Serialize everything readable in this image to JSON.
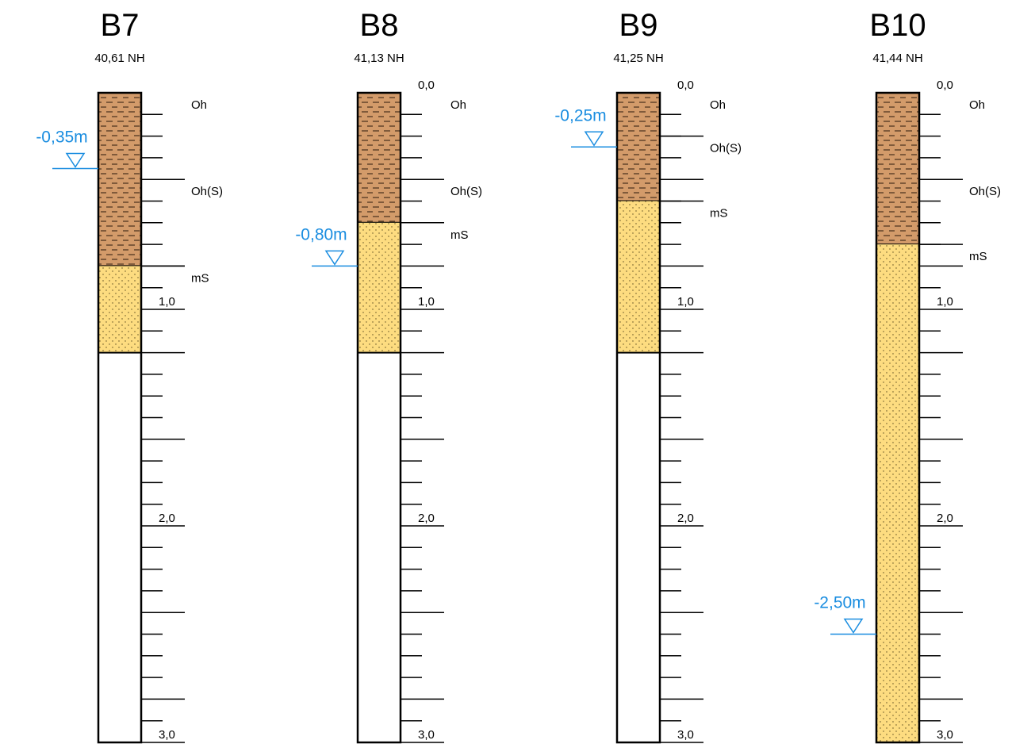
{
  "colors": {
    "organic": "#d39b6a",
    "sand": "#fddc80",
    "water": "#1a8de0",
    "outline": "#000000"
  },
  "scale_ticks_per_metre": 10,
  "boreholes": [
    {
      "name": "B7",
      "elevation": "40,61 NH",
      "depth_labels": [
        "1,0",
        "2,0",
        "3,0"
      ],
      "layers": [
        {
          "code": "Oh",
          "type": "organic",
          "from": 0.0,
          "to": 0.4
        },
        {
          "code": "Oh(S)",
          "type": "organic",
          "from": 0.4,
          "to": 0.8
        },
        {
          "code": "mS",
          "type": "sand",
          "from": 0.8,
          "to": 1.2
        }
      ],
      "groundwater": {
        "label": "-0,35m",
        "depth": 0.35
      }
    },
    {
      "name": "B8",
      "elevation": "41,13 NH",
      "depth_labels": [
        "0,0",
        "1,0",
        "2,0",
        "3,0"
      ],
      "layers": [
        {
          "code": "Oh",
          "type": "organic",
          "from": 0.0,
          "to": 0.4
        },
        {
          "code": "Oh(S)",
          "type": "organic",
          "from": 0.4,
          "to": 0.6
        },
        {
          "code": "mS",
          "type": "sand",
          "from": 0.6,
          "to": 1.2
        }
      ],
      "groundwater": {
        "label": "-0,80m",
        "depth": 0.8
      }
    },
    {
      "name": "B9",
      "elevation": "41,25 NH",
      "depth_labels": [
        "0,0",
        "1,0",
        "2,0",
        "3,0"
      ],
      "layers": [
        {
          "code": "Oh",
          "type": "organic",
          "from": 0.0,
          "to": 0.2
        },
        {
          "code": "Oh(S)",
          "type": "organic",
          "from": 0.2,
          "to": 0.5
        },
        {
          "code": "mS",
          "type": "sand",
          "from": 0.5,
          "to": 1.2
        }
      ],
      "groundwater": {
        "label": "-0,25m",
        "depth": 0.25
      }
    },
    {
      "name": "B10",
      "elevation": "41,44 NH",
      "depth_labels": [
        "0,0",
        "1,0",
        "2,0",
        "3,0"
      ],
      "layers": [
        {
          "code": "Oh",
          "type": "organic",
          "from": 0.0,
          "to": 0.4
        },
        {
          "code": "Oh(S)",
          "type": "organic",
          "from": 0.4,
          "to": 0.7
        },
        {
          "code": "mS",
          "type": "sand",
          "from": 0.7,
          "to": 3.0
        }
      ],
      "groundwater": {
        "label": "-2,50m",
        "depth": 2.5
      }
    }
  ]
}
